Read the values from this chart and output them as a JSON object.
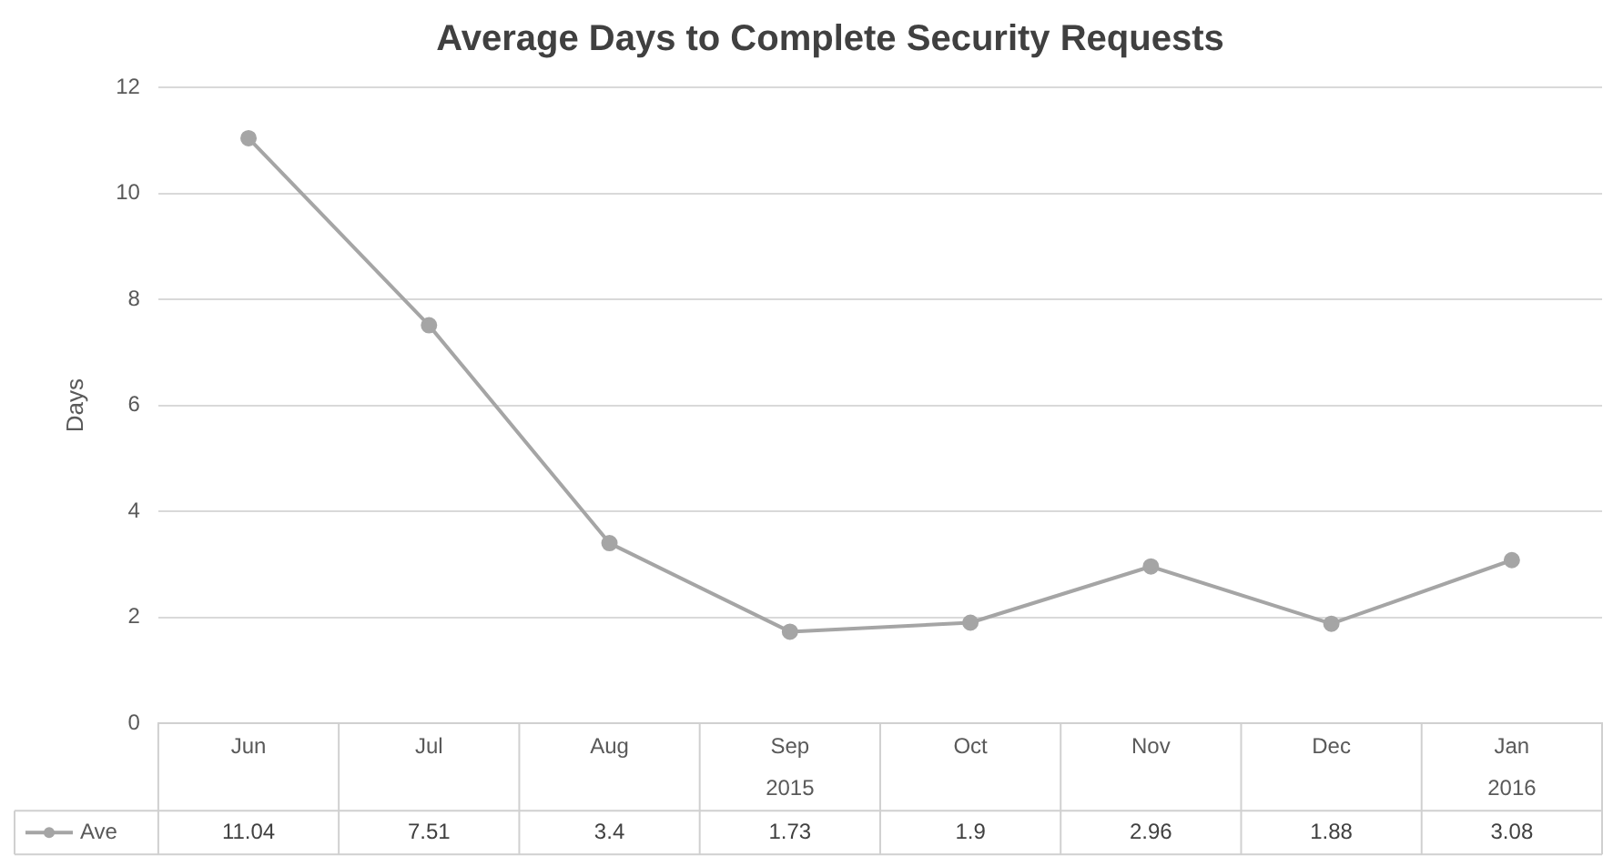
{
  "chart_data": {
    "type": "line",
    "title": "Average Days to Complete Security Requests",
    "ylabel": "Days",
    "categories": [
      "Jun",
      "Jul",
      "Aug",
      "Sep",
      "Oct",
      "Nov",
      "Dec",
      "Jan"
    ],
    "series": [
      {
        "name": "Ave",
        "color": "#a5a5a5",
        "values": [
          11.04,
          7.51,
          3.4,
          1.73,
          1.9,
          2.96,
          1.88,
          3.08
        ]
      }
    ],
    "ylim": [
      0,
      12
    ],
    "yticks": [
      0,
      2,
      4,
      6,
      8,
      10,
      12
    ],
    "grid": "y",
    "marker": "circle",
    "line_style": "solid",
    "data_labels": true,
    "legend": "bottom",
    "annotations": [
      "2015",
      "2016"
    ]
  }
}
